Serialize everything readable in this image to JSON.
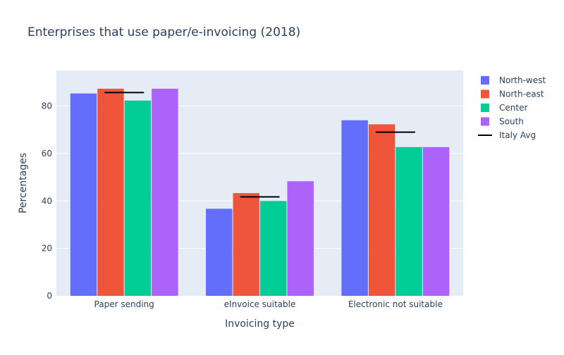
{
  "chart_data": {
    "type": "bar",
    "title": "Enterprises that use paper/e-invoicing (2018)",
    "xlabel": "Invoicing type",
    "ylabel": "Percentages",
    "categories": [
      "Paper sending",
      "eInvoice suitable",
      "Electronic not suitable"
    ],
    "y_ticks": [
      "0",
      "20",
      "40",
      "60",
      "80"
    ],
    "ylim": [
      0,
      95
    ],
    "grid": true,
    "legend_position": "top-right, outside plot",
    "series": [
      {
        "name": "North-west",
        "color": "#636efa",
        "values": [
          85.3,
          36.7,
          74.0
        ]
      },
      {
        "name": "North-east",
        "color": "#ef553b",
        "values": [
          87.3,
          43.3,
          72.3
        ]
      },
      {
        "name": "Center",
        "color": "#00cc96",
        "values": [
          82.3,
          40.0,
          62.7
        ]
      },
      {
        "name": "South",
        "color": "#ab63fa",
        "values": [
          87.3,
          48.3,
          62.7
        ]
      }
    ],
    "line_series": {
      "name": "Italy Avg",
      "color": "#000000",
      "values": [
        85.7,
        41.7,
        69.0
      ]
    },
    "background": "#e5ecf6",
    "gridline_color": "#ffffff"
  }
}
